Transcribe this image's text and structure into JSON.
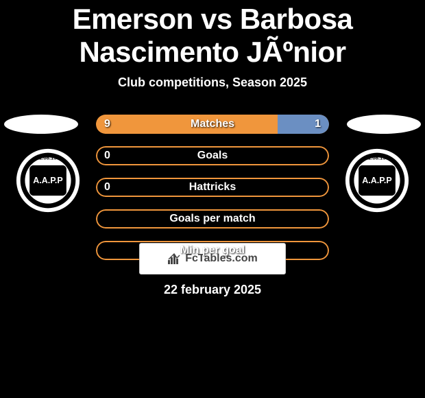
{
  "title": "Emerson vs Barbosa Nascimento JÃºnior",
  "subtitle": "Club competitions, Season 2025",
  "date": "22 february 2025",
  "fctables_label": "FcTables.com",
  "colors": {
    "background": "#000000",
    "text": "#ffffff",
    "player1_fill": "#f0963c",
    "player2_fill": "#6b8fc2",
    "track_empty": "rgba(0,0,0,0)",
    "track_border_orange": "#f0963c",
    "badge_bg": "#ffffff",
    "badge_text": "#444444"
  },
  "club_logo": {
    "initials": "A.A.P.P",
    "year_text": "11.08.190",
    "bg": "#000000",
    "ring": "#ffffff"
  },
  "stats": [
    {
      "label": "Matches",
      "left_value": "9",
      "right_value": "1",
      "left_ratio": 0.78,
      "right_ratio": 0.22,
      "show_left": true,
      "show_right": true
    },
    {
      "label": "Goals",
      "left_value": "0",
      "right_value": "",
      "left_ratio": 0,
      "right_ratio": 0,
      "show_left": true,
      "show_right": false
    },
    {
      "label": "Hattricks",
      "left_value": "0",
      "right_value": "",
      "left_ratio": 0,
      "right_ratio": 0,
      "show_left": true,
      "show_right": false
    },
    {
      "label": "Goals per match",
      "left_value": "",
      "right_value": "",
      "left_ratio": 0,
      "right_ratio": 0,
      "show_left": false,
      "show_right": false
    },
    {
      "label": "Min per goal",
      "left_value": "",
      "right_value": "",
      "left_ratio": 0,
      "right_ratio": 0,
      "show_left": false,
      "show_right": false
    }
  ]
}
